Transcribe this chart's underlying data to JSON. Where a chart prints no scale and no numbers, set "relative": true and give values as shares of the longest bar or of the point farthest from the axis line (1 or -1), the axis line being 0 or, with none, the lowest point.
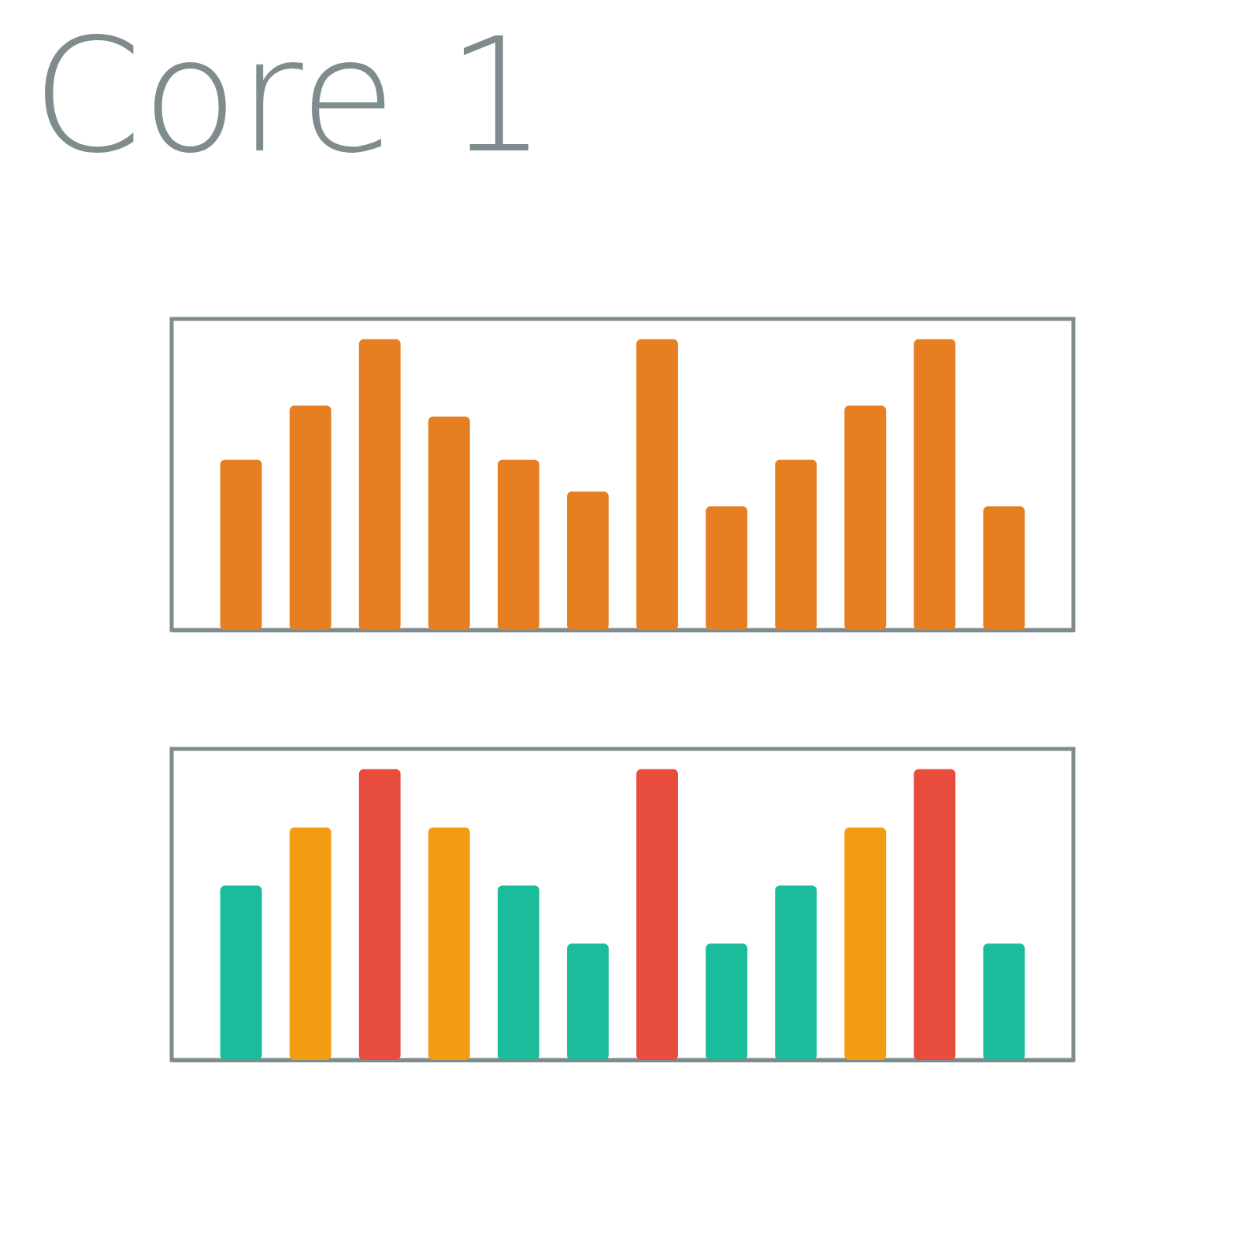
{
  "chart_data": [
    {
      "type": "bar",
      "title": "Core 1",
      "relative": true,
      "categories": [
        null,
        null,
        null,
        null,
        null,
        null,
        null,
        null,
        null,
        null,
        null,
        null
      ],
      "values": [
        0.586,
        0.772,
        1,
        0.734,
        0.586,
        0.476,
        1,
        0.425,
        0.586,
        0.772,
        1,
        0.425
      ],
      "color": "#e67e22"
    },
    {
      "type": "bar",
      "relative": true,
      "categories": [
        null,
        null,
        null,
        null,
        null,
        null,
        null,
        null,
        null,
        null,
        null,
        null
      ],
      "values": [
        0.6,
        0.8,
        1,
        0.8,
        0.6,
        0.4,
        1,
        0.4,
        0.6,
        0.8,
        1,
        0.4
      ],
      "colors": [
        "#1abc9c",
        "#f39c12",
        "#e74c3c",
        "#f39c12",
        "#1abc9c",
        "#1abc9c",
        "#e74c3c",
        "#1abc9c",
        "#1abc9c",
        "#f39c12",
        "#e74c3c",
        "#1abc9c"
      ]
    }
  ]
}
